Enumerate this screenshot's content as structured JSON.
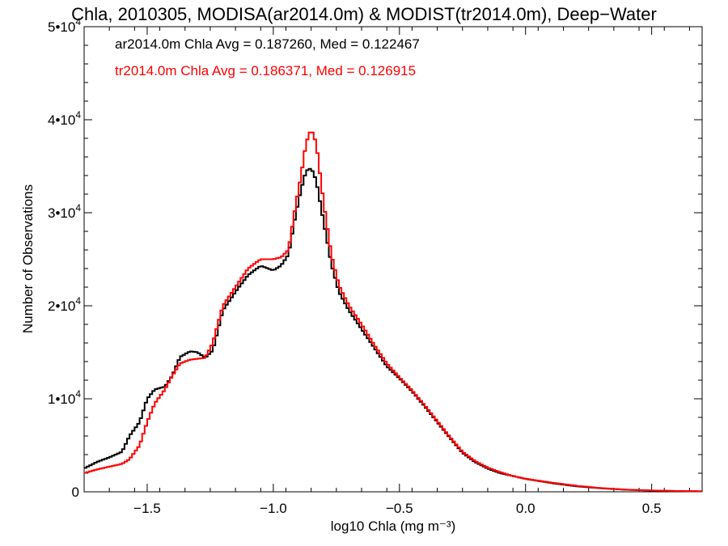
{
  "chart_data": {
    "type": "line",
    "title": "Chla, 2010305, MODISA(ar2014.0m) & MODIST(tr2014.0m), Deep−Water",
    "xlabel": "log10 Chla (mg m⁻³)",
    "ylabel": "Number of Observations",
    "xlim": [
      -1.75,
      0.7
    ],
    "ylim": [
      0,
      50000
    ],
    "xticks": [
      {
        "value": -1.5,
        "label": "−1.5"
      },
      {
        "value": -1.0,
        "label": "−1.0"
      },
      {
        "value": -0.5,
        "label": "−0.5"
      },
      {
        "value": 0.0,
        "label": "0.0"
      },
      {
        "value": 0.5,
        "label": "0.5"
      }
    ],
    "yticks": [
      {
        "value": 0,
        "base": "0",
        "exp": ""
      },
      {
        "value": 10000,
        "base": "1•10",
        "exp": "4"
      },
      {
        "value": 20000,
        "base": "2•10",
        "exp": "4"
      },
      {
        "value": 30000,
        "base": "3•10",
        "exp": "4"
      },
      {
        "value": 40000,
        "base": "4•10",
        "exp": "4"
      },
      {
        "value": 50000,
        "base": "5•10",
        "exp": "4"
      }
    ],
    "grid": false,
    "step": true,
    "annotations": [
      {
        "text": "ar2014.0m Chla Avg = 0.187260, Med = 0.122467",
        "color": "#000000"
      },
      {
        "text": "tr2014.0m Chla Avg = 0.186371, Med = 0.126915",
        "color": "#ff0000"
      }
    ],
    "series": [
      {
        "color": "#000000",
        "points": [
          [
            -1.75,
            2500
          ],
          [
            -1.7,
            3200
          ],
          [
            -1.65,
            3700
          ],
          [
            -1.6,
            4300
          ],
          [
            -1.57,
            6000
          ],
          [
            -1.53,
            7500
          ],
          [
            -1.5,
            10000
          ],
          [
            -1.47,
            11000
          ],
          [
            -1.43,
            11300
          ],
          [
            -1.4,
            12500
          ],
          [
            -1.37,
            14500
          ],
          [
            -1.33,
            15100
          ],
          [
            -1.3,
            15000
          ],
          [
            -1.27,
            14400
          ],
          [
            -1.24,
            15200
          ],
          [
            -1.2,
            19500
          ],
          [
            -1.15,
            21500
          ],
          [
            -1.1,
            23300
          ],
          [
            -1.05,
            24300
          ],
          [
            -1.0,
            23800
          ],
          [
            -0.97,
            24300
          ],
          [
            -0.94,
            25500
          ],
          [
            -0.91,
            30000
          ],
          [
            -0.89,
            32500
          ],
          [
            -0.87,
            34500
          ],
          [
            -0.85,
            34800
          ],
          [
            -0.83,
            33500
          ],
          [
            -0.8,
            29000
          ],
          [
            -0.77,
            24500
          ],
          [
            -0.74,
            21500
          ],
          [
            -0.7,
            19500
          ],
          [
            -0.65,
            17500
          ],
          [
            -0.6,
            15500
          ],
          [
            -0.55,
            13500
          ],
          [
            -0.5,
            12200
          ],
          [
            -0.45,
            10800
          ],
          [
            -0.4,
            9200
          ],
          [
            -0.35,
            7500
          ],
          [
            -0.3,
            5800
          ],
          [
            -0.25,
            4200
          ],
          [
            -0.2,
            3200
          ],
          [
            -0.15,
            2500
          ],
          [
            -0.1,
            2000
          ],
          [
            -0.05,
            1700
          ],
          [
            0.0,
            1400
          ],
          [
            0.1,
            950
          ],
          [
            0.2,
            600
          ],
          [
            0.3,
            380
          ],
          [
            0.4,
            220
          ],
          [
            0.5,
            130
          ],
          [
            0.6,
            80
          ],
          [
            0.7,
            50
          ]
        ]
      },
      {
        "color": "#ff0000",
        "points": [
          [
            -1.75,
            2000
          ],
          [
            -1.7,
            2400
          ],
          [
            -1.65,
            2700
          ],
          [
            -1.6,
            3000
          ],
          [
            -1.57,
            3500
          ],
          [
            -1.53,
            5000
          ],
          [
            -1.5,
            7500
          ],
          [
            -1.47,
            9500
          ],
          [
            -1.43,
            11000
          ],
          [
            -1.4,
            12500
          ],
          [
            -1.37,
            13800
          ],
          [
            -1.33,
            14200
          ],
          [
            -1.3,
            14300
          ],
          [
            -1.27,
            14400
          ],
          [
            -1.24,
            16000
          ],
          [
            -1.2,
            20000
          ],
          [
            -1.15,
            22000
          ],
          [
            -1.1,
            24000
          ],
          [
            -1.05,
            25000
          ],
          [
            -1.0,
            25000
          ],
          [
            -0.97,
            25200
          ],
          [
            -0.94,
            26000
          ],
          [
            -0.91,
            31000
          ],
          [
            -0.89,
            34000
          ],
          [
            -0.87,
            37500
          ],
          [
            -0.85,
            39000
          ],
          [
            -0.83,
            37500
          ],
          [
            -0.8,
            31000
          ],
          [
            -0.77,
            25500
          ],
          [
            -0.74,
            22200
          ],
          [
            -0.7,
            20000
          ],
          [
            -0.65,
            18000
          ],
          [
            -0.6,
            15800
          ],
          [
            -0.55,
            13800
          ],
          [
            -0.5,
            12300
          ],
          [
            -0.45,
            10900
          ],
          [
            -0.4,
            9300
          ],
          [
            -0.35,
            7600
          ],
          [
            -0.3,
            5900
          ],
          [
            -0.25,
            4300
          ],
          [
            -0.2,
            3300
          ],
          [
            -0.15,
            2600
          ],
          [
            -0.1,
            2100
          ],
          [
            -0.05,
            1700
          ],
          [
            0.0,
            1400
          ],
          [
            0.1,
            1000
          ],
          [
            0.2,
            650
          ],
          [
            0.3,
            400
          ],
          [
            0.4,
            230
          ],
          [
            0.5,
            140
          ],
          [
            0.6,
            85
          ],
          [
            0.7,
            50
          ]
        ]
      }
    ]
  }
}
